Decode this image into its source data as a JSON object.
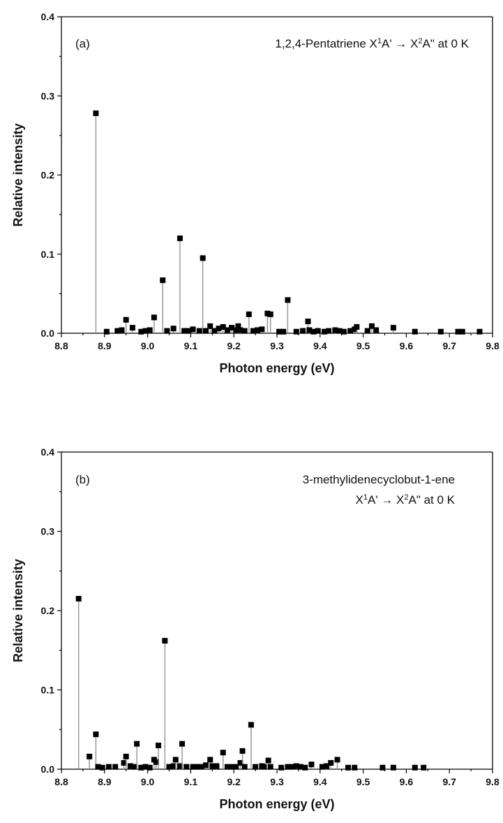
{
  "chart_data": [
    {
      "type": "scatter",
      "style": "stem",
      "panel_label": "(a)",
      "annotation_lines": [
        [
          {
            "text": "1,2,4-Pentatriene X",
            "sup": false
          },
          {
            "text": "1",
            "sup": true
          },
          {
            "text": "A' → X",
            "sup": false
          },
          {
            "text": "2",
            "sup": true
          },
          {
            "text": "A\" at 0 K",
            "sup": false
          }
        ]
      ],
      "xlabel": "Photon energy (eV)",
      "ylabel": "Relative intensity",
      "xlim": [
        8.8,
        9.8
      ],
      "ylim": [
        0,
        0.4
      ],
      "xticks": [
        "8.8",
        "8.9",
        "9.0",
        "9.1",
        "9.2",
        "9.3",
        "9.4",
        "9.5",
        "9.6",
        "9.7",
        "9.8"
      ],
      "yticks": [
        "0.0",
        "0.1",
        "0.2",
        "0.3",
        "0.4"
      ],
      "grid": false,
      "marker": "square",
      "marker_color": "#000000",
      "stem_color": "#8a8a8a",
      "series": [
        {
          "x": [
            8.88,
            8.905,
            8.93,
            8.94,
            8.95,
            8.965,
            8.985,
            8.995,
            9.005,
            9.015,
            9.035,
            9.045,
            9.06,
            9.075,
            9.085,
            9.095,
            9.105,
            9.12,
            9.128,
            9.135,
            9.145,
            9.155,
            9.165,
            9.175,
            9.185,
            9.195,
            9.205,
            9.21,
            9.215,
            9.225,
            9.235,
            9.245,
            9.255,
            9.265,
            9.278,
            9.285,
            9.305,
            9.315,
            9.325,
            9.345,
            9.36,
            9.372,
            9.375,
            9.385,
            9.395,
            9.41,
            9.42,
            9.435,
            9.445,
            9.455,
            9.47,
            9.48,
            9.485,
            9.51,
            9.52,
            9.53,
            9.57,
            9.62,
            9.68,
            9.72,
            9.73,
            9.77
          ],
          "y": [
            0.278,
            0.002,
            0.003,
            0.004,
            0.017,
            0.007,
            0.002,
            0.003,
            0.004,
            0.02,
            0.067,
            0.003,
            0.006,
            0.12,
            0.003,
            0.003,
            0.005,
            0.003,
            0.095,
            0.003,
            0.009,
            0.003,
            0.006,
            0.008,
            0.004,
            0.007,
            0.004,
            0.009,
            0.004,
            0.003,
            0.024,
            0.003,
            0.004,
            0.005,
            0.025,
            0.024,
            0.002,
            0.002,
            0.042,
            0.002,
            0.003,
            0.015,
            0.004,
            0.002,
            0.003,
            0.002,
            0.003,
            0.004,
            0.003,
            0.002,
            0.003,
            0.005,
            0.008,
            0.003,
            0.009,
            0.004,
            0.007,
            0.002,
            0.002,
            0.002,
            0.002,
            0.002
          ]
        }
      ]
    },
    {
      "type": "scatter",
      "style": "stem",
      "panel_label": "(b)",
      "annotation_lines": [
        [
          {
            "text": "3-methylidenecyclobut-1-ene",
            "sup": false
          }
        ],
        [
          {
            "text": "X",
            "sup": false
          },
          {
            "text": "1",
            "sup": true
          },
          {
            "text": "A' → X",
            "sup": false
          },
          {
            "text": "2",
            "sup": true
          },
          {
            "text": "A\" at 0 K",
            "sup": false
          }
        ]
      ],
      "xlabel": "Photon energy (eV)",
      "ylabel": "Relative intensity",
      "xlim": [
        8.8,
        9.8
      ],
      "ylim": [
        0,
        0.4
      ],
      "xticks": [
        "8.8",
        "8.9",
        "9.0",
        "9.1",
        "9.2",
        "9.3",
        "9.4",
        "9.5",
        "9.6",
        "9.7",
        "9.8"
      ],
      "yticks": [
        "0.0",
        "0.1",
        "0.2",
        "0.3",
        "0.4"
      ],
      "grid": false,
      "marker": "square",
      "marker_color": "#000000",
      "stem_color": "#8a8a8a",
      "series": [
        {
          "x": [
            8.84,
            8.865,
            8.88,
            8.885,
            8.895,
            8.91,
            8.925,
            8.945,
            8.95,
            8.96,
            8.97,
            8.975,
            8.985,
            8.995,
            9.005,
            9.015,
            9.02,
            9.025,
            9.04,
            9.05,
            9.06,
            9.065,
            9.075,
            9.08,
            9.09,
            9.105,
            9.115,
            9.125,
            9.135,
            9.145,
            9.15,
            9.16,
            9.175,
            9.185,
            9.195,
            9.205,
            9.215,
            9.22,
            9.225,
            9.24,
            9.25,
            9.265,
            9.27,
            9.28,
            9.285,
            9.31,
            9.325,
            9.335,
            9.345,
            9.355,
            9.365,
            9.38,
            9.405,
            9.415,
            9.425,
            9.44,
            9.465,
            9.48,
            9.545,
            9.57,
            9.62,
            9.64
          ],
          "y": [
            0.215,
            0.016,
            0.044,
            0.003,
            0.002,
            0.003,
            0.003,
            0.008,
            0.016,
            0.004,
            0.003,
            0.032,
            0.002,
            0.003,
            0.002,
            0.012,
            0.009,
            0.03,
            0.162,
            0.003,
            0.004,
            0.012,
            0.004,
            0.032,
            0.003,
            0.003,
            0.003,
            0.003,
            0.005,
            0.012,
            0.004,
            0.004,
            0.021,
            0.003,
            0.003,
            0.003,
            0.008,
            0.023,
            0.003,
            0.056,
            0.003,
            0.004,
            0.003,
            0.011,
            0.003,
            0.002,
            0.003,
            0.003,
            0.004,
            0.003,
            0.002,
            0.006,
            0.003,
            0.004,
            0.008,
            0.012,
            0.002,
            0.002,
            0.002,
            0.002,
            0.002,
            0.002
          ]
        }
      ]
    }
  ]
}
